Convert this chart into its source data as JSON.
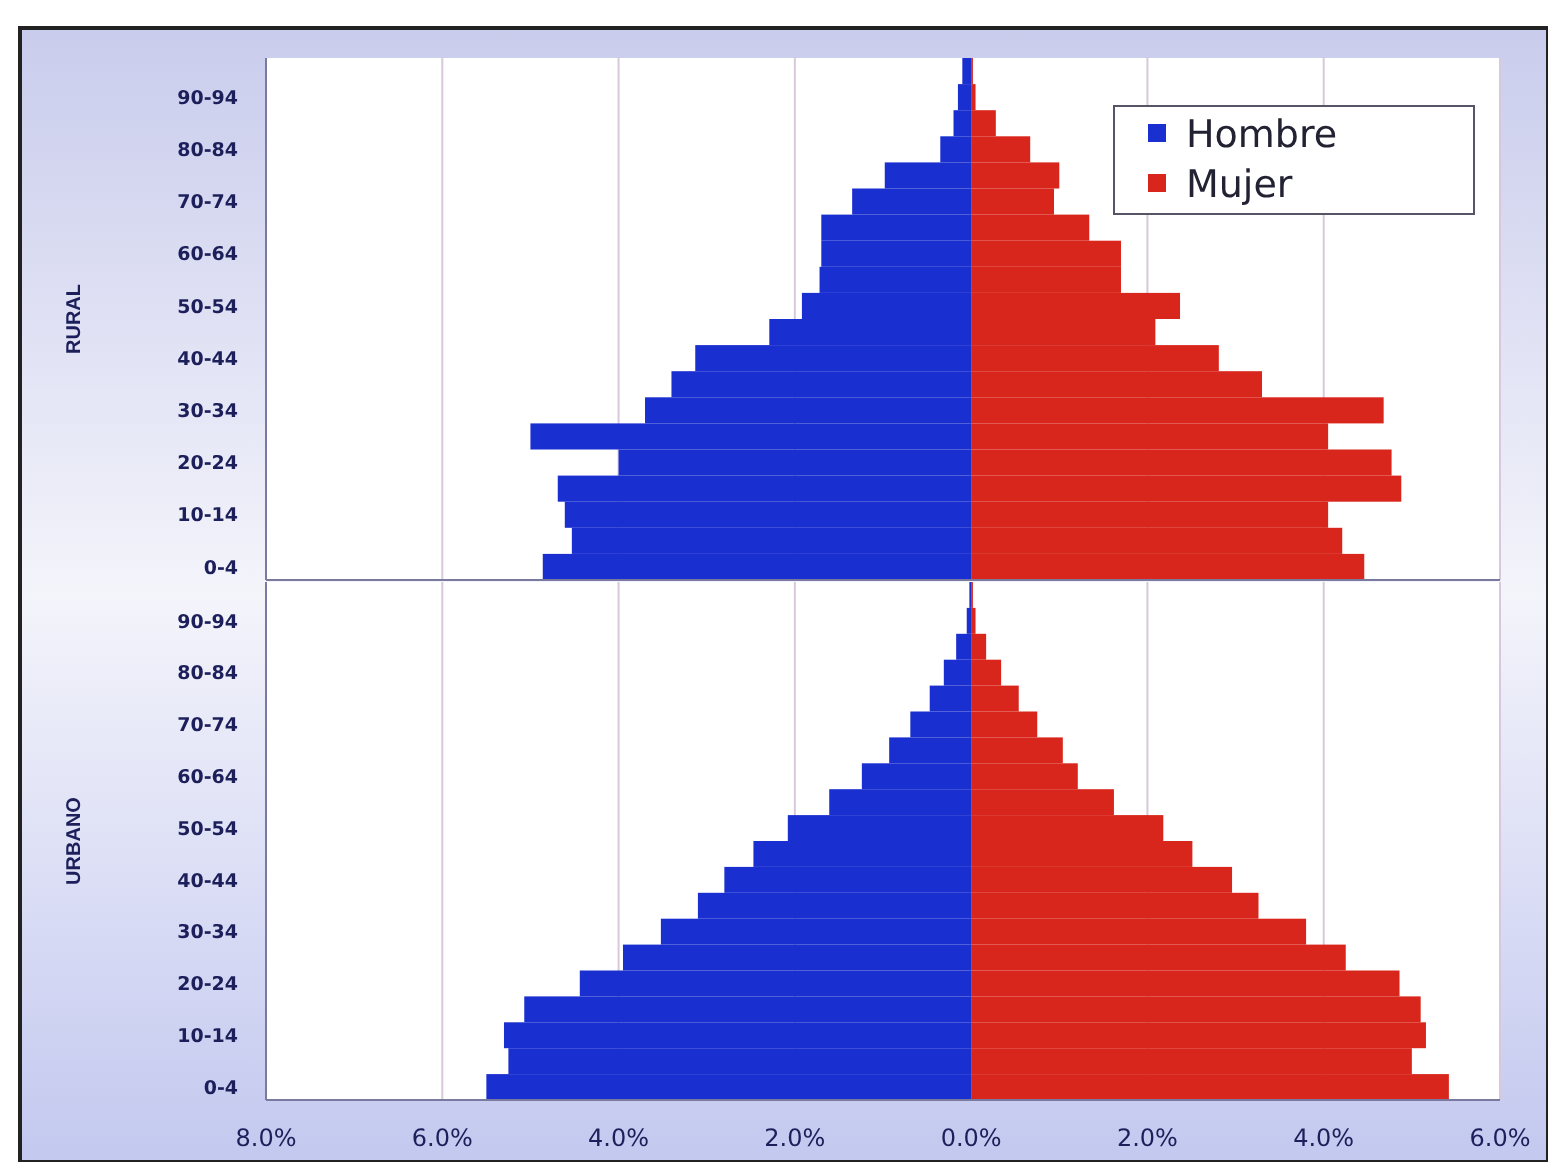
{
  "chart_data": [
    {
      "type": "bar",
      "orientation": "horizontal",
      "stacked": true,
      "ylabel": "RURAL",
      "categories": [
        null,
        "90-94",
        null,
        "80-84",
        null,
        "70-74",
        null,
        "60-64",
        null,
        "50-54",
        null,
        "40-44",
        null,
        "30-34",
        null,
        "20-24",
        null,
        "10-14",
        null,
        "0-4"
      ],
      "series": [
        {
          "name": "Hombre",
          "color": "#1a2fd0",
          "values": [
            -0.1,
            -0.15,
            -0.2,
            -0.35,
            -0.98,
            -1.35,
            -1.7,
            -1.7,
            -1.72,
            -1.92,
            -2.29,
            -3.13,
            -3.4,
            -3.7,
            -5.0,
            -4.0,
            -4.69,
            -4.61,
            -4.53,
            -4.86
          ]
        },
        {
          "name": "Mujer",
          "color": "#d9261c",
          "values": [
            0.02,
            0.05,
            0.28,
            0.67,
            1.0,
            0.94,
            1.34,
            1.7,
            1.7,
            2.37,
            2.09,
            2.81,
            3.3,
            4.68,
            4.05,
            4.77,
            4.88,
            4.05,
            4.21,
            4.46
          ]
        }
      ],
      "xlim": [
        -8,
        6
      ],
      "xticks": [
        {
          "value": -8,
          "label": null
        },
        {
          "value": -6,
          "label": null
        },
        {
          "value": -4,
          "label": null
        },
        {
          "value": -2,
          "label": null
        },
        {
          "value": 0,
          "label": null
        },
        {
          "value": 2,
          "label": null
        },
        {
          "value": 4,
          "label": null
        },
        {
          "value": 6,
          "label": null
        }
      ],
      "tick_labels": "y",
      "grid": "x",
      "legend": "top right"
    },
    {
      "type": "bar",
      "orientation": "horizontal",
      "stacked": true,
      "ylabel": "URBANO",
      "categories": [
        null,
        "90-94",
        null,
        "80-84",
        null,
        "70-74",
        null,
        "60-64",
        null,
        "50-54",
        null,
        "40-44",
        null,
        "30-34",
        null,
        "20-24",
        null,
        "10-14",
        null,
        "0-4"
      ],
      "series": [
        {
          "color": "#1a2fd0",
          "values": [
            -0.02,
            -0.05,
            -0.17,
            -0.31,
            -0.47,
            -0.69,
            -0.93,
            -1.24,
            -1.61,
            -2.08,
            -2.47,
            -2.8,
            -3.1,
            -3.52,
            -3.95,
            -4.44,
            -5.07,
            -5.3,
            -5.25,
            -5.5
          ]
        },
        {
          "color": "#d9261c",
          "values": [
            0.02,
            0.05,
            0.17,
            0.34,
            0.54,
            0.75,
            1.04,
            1.21,
            1.62,
            2.18,
            2.51,
            2.96,
            3.26,
            3.8,
            4.25,
            4.86,
            5.1,
            5.16,
            5.0,
            5.42
          ]
        }
      ],
      "xlim": [
        -8,
        6
      ],
      "xticks": [
        {
          "value": -8,
          "label": "8.0%"
        },
        {
          "value": -6,
          "label": "6.0%"
        },
        {
          "value": -4,
          "label": "4.0%"
        },
        {
          "value": -2,
          "label": "2.0%"
        },
        {
          "value": 0,
          "label": "0.0%"
        },
        {
          "value": 2,
          "label": "2.0%"
        },
        {
          "value": 4,
          "label": "4.0%"
        },
        {
          "value": 6,
          "label": "6.0%"
        }
      ],
      "grid": "x"
    }
  ]
}
